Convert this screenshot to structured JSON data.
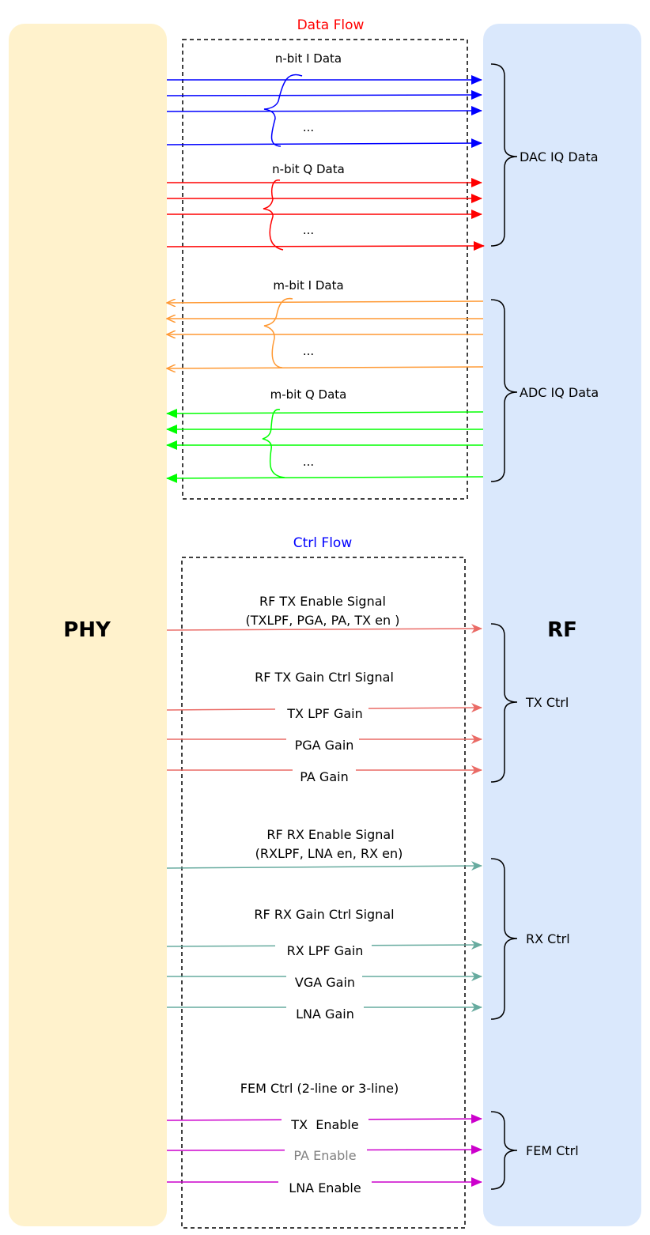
{
  "blocks": {
    "phy": {
      "label": "PHY",
      "fill": "#fff2cc"
    },
    "rf": {
      "label": "RF",
      "fill": "#dae8fc"
    }
  },
  "sections": {
    "data_flow": {
      "title": "Data Flow",
      "color": "#ff0000"
    },
    "ctrl_flow": {
      "title": "Ctrl Flow",
      "color": "#0000ff"
    }
  },
  "groups": [
    {
      "id": "n-bit-i-data",
      "label": "n-bit I Data",
      "ellipsis": "...",
      "color": "#0000ff",
      "direction": "to-rf"
    },
    {
      "id": "n-bit-q-data",
      "label": "n-bit Q Data",
      "ellipsis": "...",
      "color": "#ff0000",
      "direction": "to-rf"
    },
    {
      "id": "m-bit-i-data",
      "label": "m-bit I Data",
      "ellipsis": "...",
      "color": "#ff9933",
      "direction": "to-phy"
    },
    {
      "id": "m-bit-q-data",
      "label": "m-bit Q Data",
      "ellipsis": "...",
      "color": "#00ff00",
      "direction": "to-phy"
    }
  ],
  "ctrl_signals": {
    "tx_enable": {
      "line1": "RF TX Enable Signal",
      "line2": "(TXLPF, PGA, PA, TX en )"
    },
    "tx_gain_title": "RF TX Gain Ctrl Signal",
    "tx_gain": [
      "TX LPF Gain",
      "PGA Gain",
      "PA Gain"
    ],
    "rx_enable": {
      "line1": "RF RX Enable Signal",
      "line2": "(RXLPF, LNA en, RX en)"
    },
    "rx_gain_title": "RF RX Gain Ctrl Signal",
    "rx_gain": [
      "RX LPF Gain",
      "VGA Gain",
      "LNA Gain"
    ],
    "fem_title": "FEM Ctrl  (2-line or 3-line)",
    "fem": [
      "TX  Enable",
      "PA Enable",
      "LNA Enable"
    ]
  },
  "colors": {
    "tx": "#ea6b66",
    "rx": "#67ab9f",
    "fem": "#cc00cc",
    "dim_text": "#808080"
  },
  "brace_labels": {
    "dac": "DAC IQ Data",
    "adc": "ADC IQ Data",
    "tx": "TX Ctrl",
    "rx": "RX Ctrl",
    "fem": "FEM Ctrl"
  }
}
